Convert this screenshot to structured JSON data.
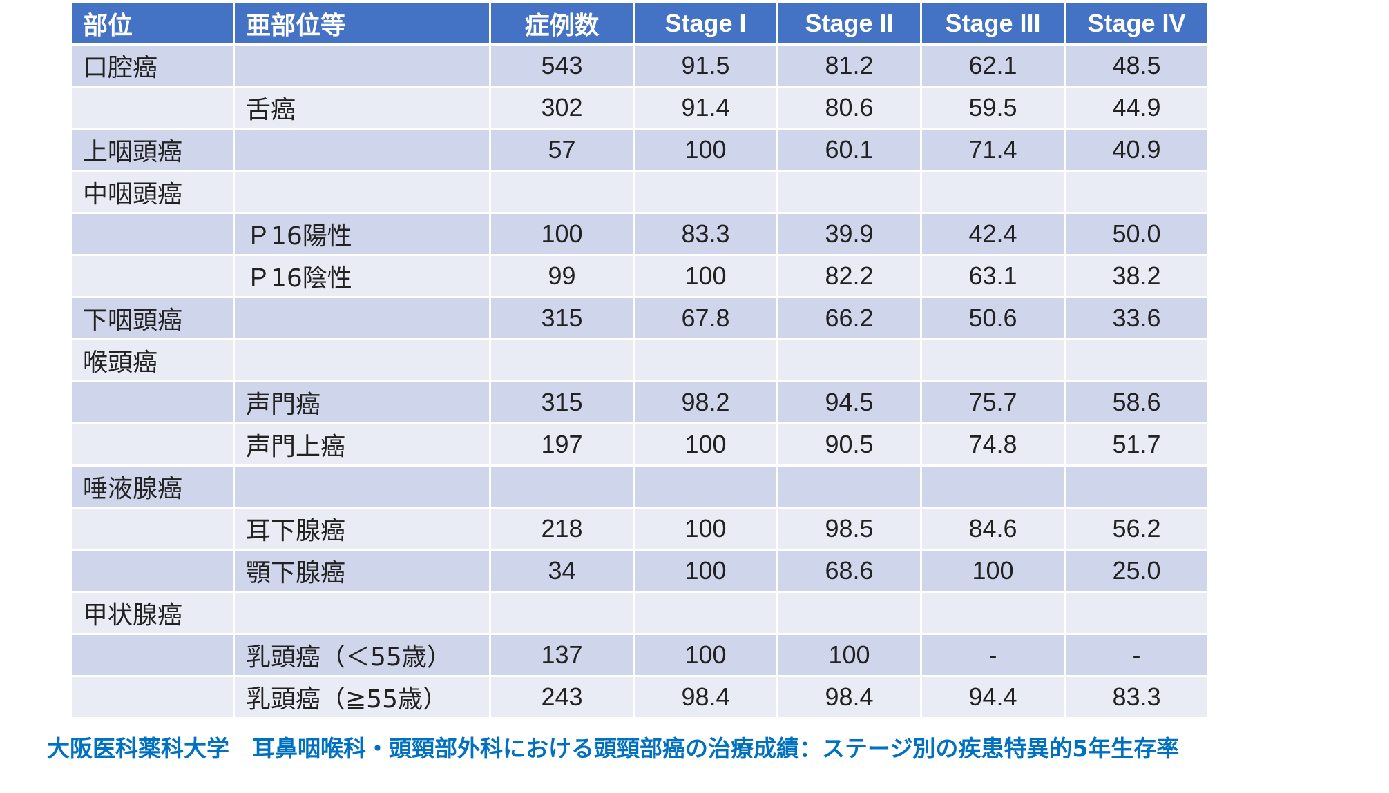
{
  "table": {
    "headers": [
      "部位",
      "亜部位等",
      "症例数",
      "Stage I",
      "Stage II",
      "Stage III",
      "Stage IV"
    ],
    "rows": [
      [
        "口腔癌",
        "",
        "543",
        "91.5",
        "81.2",
        "62.1",
        "48.5"
      ],
      [
        "",
        "舌癌",
        "302",
        "91.4",
        "80.6",
        "59.5",
        "44.9"
      ],
      [
        "上咽頭癌",
        "",
        "57",
        "100",
        "60.1",
        "71.4",
        "40.9"
      ],
      [
        "中咽頭癌",
        "",
        "",
        "",
        "",
        "",
        ""
      ],
      [
        "",
        "Ｐ16陽性",
        "100",
        "83.3",
        "39.9",
        "42.4",
        "50.0"
      ],
      [
        "",
        "Ｐ16陰性",
        "99",
        "100",
        "82.2",
        "63.1",
        "38.2"
      ],
      [
        "下咽頭癌",
        "",
        "315",
        "67.8",
        "66.2",
        "50.6",
        "33.6"
      ],
      [
        "喉頭癌",
        "",
        "",
        "",
        "",
        "",
        ""
      ],
      [
        "",
        "声門癌",
        "315",
        "98.2",
        "94.5",
        "75.7",
        "58.6"
      ],
      [
        "",
        "声門上癌",
        "197",
        "100",
        "90.5",
        "74.8",
        "51.7"
      ],
      [
        "唾液腺癌",
        "",
        "",
        "",
        "",
        "",
        ""
      ],
      [
        "",
        "耳下腺癌",
        "218",
        "100",
        "98.5",
        "84.6",
        "56.2"
      ],
      [
        "",
        "顎下腺癌",
        "34",
        "100",
        "68.6",
        "100",
        "25.0"
      ],
      [
        "甲状腺癌",
        "",
        "",
        "",
        "",
        "",
        ""
      ],
      [
        "",
        "乳頭癌（＜55歳）",
        "137",
        "100",
        "100",
        "-",
        "-"
      ],
      [
        "",
        "乳頭癌（≧55歳）",
        "243",
        "98.4",
        "98.4",
        "94.4",
        "83.3"
      ]
    ]
  },
  "caption": "大阪医科薬科大学　耳鼻咽喉科・頭頸部外科における頭頸部癌の治療成績：ステージ別の疾患特異的5年生存率",
  "colors": {
    "header_bg": "#4472c4",
    "band_dark": "#cfd5ea",
    "band_light": "#e9ebf5",
    "caption": "#0070c0"
  }
}
